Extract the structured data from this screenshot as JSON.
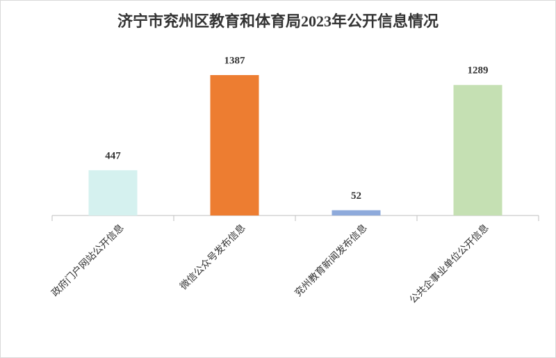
{
  "chart_data": {
    "type": "bar",
    "title": "济宁市兖州区教育和体育局2023年公开信息情况",
    "categories": [
      "政府门户网站公开信息",
      "微信公众号发布信息",
      "兖州教育新闻发布信息",
      "公共企事业单位公开信息"
    ],
    "values": [
      447,
      1387,
      52,
      1289
    ],
    "colors": [
      "#d5f1ef",
      "#ed7d31",
      "#8eaadb",
      "#c5e0b3"
    ]
  }
}
